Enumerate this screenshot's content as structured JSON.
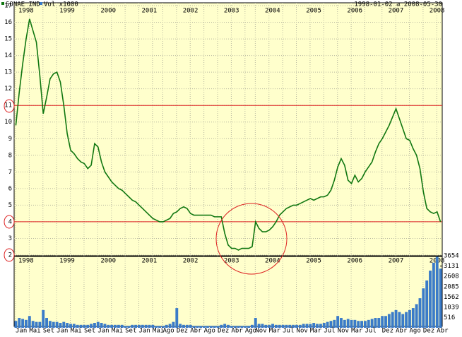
{
  "chart_data": {
    "type": "line",
    "subtitle": "1998-01-02 a 2008-05-30",
    "x": [
      "1998-01",
      "1998-02",
      "1998-03",
      "1998-04",
      "1998-05",
      "1998-06",
      "1998-07",
      "1998-08",
      "1998-09",
      "1998-10",
      "1998-11",
      "1998-12",
      "1999-01",
      "1999-02",
      "1999-03",
      "1999-04",
      "1999-05",
      "1999-06",
      "1999-07",
      "1999-08",
      "1999-09",
      "1999-10",
      "1999-11",
      "1999-12",
      "2000-01",
      "2000-02",
      "2000-03",
      "2000-04",
      "2000-05",
      "2000-06",
      "2000-07",
      "2000-08",
      "2000-09",
      "2000-10",
      "2000-11",
      "2000-12",
      "2001-01",
      "2001-02",
      "2001-03",
      "2001-04",
      "2001-05",
      "2001-06",
      "2001-07",
      "2001-08",
      "2001-09",
      "2001-10",
      "2001-11",
      "2001-12",
      "2002-01",
      "2002-02",
      "2002-03",
      "2002-04",
      "2002-05",
      "2002-06",
      "2002-07",
      "2002-08",
      "2002-09",
      "2002-10",
      "2002-11",
      "2002-12",
      "2003-01",
      "2003-02",
      "2003-03",
      "2003-04",
      "2003-05",
      "2003-06",
      "2003-07",
      "2003-08",
      "2003-09",
      "2003-10",
      "2003-11",
      "2003-12",
      "2004-01",
      "2004-02",
      "2004-03",
      "2004-04",
      "2004-05",
      "2004-06",
      "2004-07",
      "2004-08",
      "2004-09",
      "2004-10",
      "2004-11",
      "2004-12",
      "2005-01",
      "2005-02",
      "2005-03",
      "2005-04",
      "2005-05",
      "2005-06",
      "2005-07",
      "2005-08",
      "2005-09",
      "2005-10",
      "2005-11",
      "2005-12",
      "2006-01",
      "2006-02",
      "2006-03",
      "2006-04",
      "2006-05",
      "2006-06",
      "2006-07",
      "2006-08",
      "2006-09",
      "2006-10",
      "2006-11",
      "2006-12",
      "2007-01",
      "2007-02",
      "2007-03",
      "2007-04",
      "2007-05",
      "2007-06",
      "2007-07",
      "2007-08",
      "2007-09",
      "2007-10",
      "2007-11",
      "2007-12",
      "2008-01",
      "2008-02",
      "2008-03",
      "2008-04",
      "2008-05"
    ],
    "xlim": [
      "1998-01",
      "2008-05"
    ],
    "xticks": [
      {
        "value": "1998-01",
        "label": "Jan"
      },
      {
        "value": "1998-05",
        "label": "Mai"
      },
      {
        "value": "1998-09",
        "label": "Set"
      },
      {
        "value": "1999-01",
        "label": "Jan"
      },
      {
        "value": "1999-05",
        "label": "Mai"
      },
      {
        "value": "1999-09",
        "label": "Set"
      },
      {
        "value": "2000-01",
        "label": "Jan"
      },
      {
        "value": "2000-05",
        "label": "Mai"
      },
      {
        "value": "2000-09",
        "label": "Set"
      },
      {
        "value": "2001-01",
        "label": "Jan"
      },
      {
        "value": "2001-05",
        "label": "Mai"
      },
      {
        "value": "2001-08",
        "label": "Ago"
      },
      {
        "value": "2001-12",
        "label": "Dez"
      },
      {
        "value": "2002-04",
        "label": "Abr"
      },
      {
        "value": "2002-08",
        "label": "Ago"
      },
      {
        "value": "2002-12",
        "label": "Dez"
      },
      {
        "value": "2003-04",
        "label": "Abr"
      },
      {
        "value": "2003-08",
        "label": "Ago"
      },
      {
        "value": "2003-11",
        "label": "Nov"
      },
      {
        "value": "2004-03",
        "label": "Mar"
      },
      {
        "value": "2004-07",
        "label": "Jul"
      },
      {
        "value": "2004-11",
        "label": "Nov"
      },
      {
        "value": "2005-03",
        "label": "Mar"
      },
      {
        "value": "2005-07",
        "label": "Jul"
      },
      {
        "value": "2005-11",
        "label": "Nov"
      },
      {
        "value": "2006-03",
        "label": "Mar"
      },
      {
        "value": "2006-07",
        "label": "Jul"
      },
      {
        "value": "2006-12",
        "label": "Dez"
      },
      {
        "value": "2007-04",
        "label": "Abr"
      },
      {
        "value": "2007-08",
        "label": "Ago"
      },
      {
        "value": "2007-12",
        "label": "Dez"
      },
      {
        "value": "2008-04",
        "label": "Abr"
      }
    ],
    "year_labels": [
      {
        "value": "1998-01",
        "label": "1998"
      },
      {
        "value": "1999-01",
        "label": "1999"
      },
      {
        "value": "2000-01",
        "label": "2000"
      },
      {
        "value": "2001-01",
        "label": "2001"
      },
      {
        "value": "2002-01",
        "label": "2002"
      },
      {
        "value": "2003-01",
        "label": "2003"
      },
      {
        "value": "2004-01",
        "label": "2004"
      },
      {
        "value": "2005-01",
        "label": "2005"
      },
      {
        "value": "2006-01",
        "label": "2006"
      },
      {
        "value": "2007-01",
        "label": "2007"
      },
      {
        "value": "2008-01",
        "label": "2008"
      }
    ],
    "series": [
      {
        "name": "SONAE IND",
        "color": "#117711",
        "values": [
          9.8,
          11.8,
          13.5,
          15.0,
          16.2,
          15.5,
          14.8,
          12.8,
          10.5,
          11.5,
          12.6,
          12.9,
          13.0,
          12.4,
          11.0,
          9.3,
          8.3,
          8.1,
          7.8,
          7.6,
          7.5,
          7.2,
          7.4,
          8.7,
          8.5,
          7.6,
          7.0,
          6.7,
          6.4,
          6.2,
          6.0,
          5.9,
          5.7,
          5.5,
          5.3,
          5.2,
          5.0,
          4.8,
          4.6,
          4.4,
          4.2,
          4.1,
          4.0,
          4.0,
          4.1,
          4.2,
          4.5,
          4.6,
          4.8,
          4.9,
          4.8,
          4.5,
          4.4,
          4.4,
          4.4,
          4.4,
          4.4,
          4.4,
          4.3,
          4.3,
          4.3,
          3.3,
          2.6,
          2.4,
          2.4,
          2.3,
          2.4,
          2.4,
          2.4,
          2.5,
          4.0,
          3.6,
          3.4,
          3.4,
          3.5,
          3.7,
          4.0,
          4.4,
          4.6,
          4.8,
          4.9,
          5.0,
          5.0,
          5.1,
          5.2,
          5.3,
          5.4,
          5.3,
          5.4,
          5.5,
          5.5,
          5.6,
          5.9,
          6.5,
          7.3,
          7.8,
          7.4,
          6.5,
          6.3,
          6.8,
          6.4,
          6.6,
          7.0,
          7.3,
          7.6,
          8.2,
          8.7,
          9.0,
          9.4,
          9.8,
          10.3,
          10.8,
          10.2,
          9.6,
          9.0,
          8.9,
          8.4,
          8.0,
          7.2,
          5.8,
          4.8,
          4.6,
          4.5,
          4.6,
          4.0
        ]
      },
      {
        "name": "Vol x1000",
        "color": "#3a7bc8",
        "type": "bar",
        "axis": "y2",
        "values": [
          350,
          500,
          450,
          400,
          600,
          350,
          300,
          300,
          900,
          500,
          350,
          300,
          300,
          250,
          300,
          250,
          200,
          200,
          150,
          150,
          150,
          150,
          200,
          250,
          300,
          250,
          200,
          150,
          150,
          150,
          150,
          150,
          100,
          100,
          150,
          150,
          150,
          150,
          150,
          150,
          150,
          100,
          100,
          100,
          150,
          200,
          300,
          1000,
          200,
          150,
          150,
          150,
          100,
          100,
          100,
          100,
          100,
          100,
          100,
          100,
          150,
          200,
          150,
          100,
          100,
          100,
          100,
          100,
          100,
          150,
          500,
          200,
          200,
          150,
          150,
          200,
          150,
          150,
          150,
          150,
          150,
          150,
          150,
          150,
          200,
          200,
          200,
          250,
          200,
          200,
          250,
          300,
          350,
          400,
          600,
          500,
          400,
          450,
          400,
          400,
          350,
          350,
          350,
          400,
          450,
          500,
          500,
          600,
          600,
          700,
          800,
          900,
          800,
          700,
          800,
          900,
          1000,
          1200,
          1500,
          2000,
          2400,
          2900,
          3300,
          3600,
          3000
        ]
      }
    ],
    "ylim": [
      2,
      17
    ],
    "yticks": [
      2,
      3,
      4,
      5,
      6,
      7,
      8,
      9,
      10,
      11,
      12,
      13,
      14,
      15,
      16,
      17
    ],
    "y2lim": [
      0,
      3654
    ],
    "y2ticks": [
      516,
      1039,
      1562,
      2085,
      2608,
      3131,
      3654
    ],
    "reference_lines": [
      11,
      4
    ],
    "reference_color": "#dd2222",
    "background": "#ffffcc",
    "grid": true
  }
}
